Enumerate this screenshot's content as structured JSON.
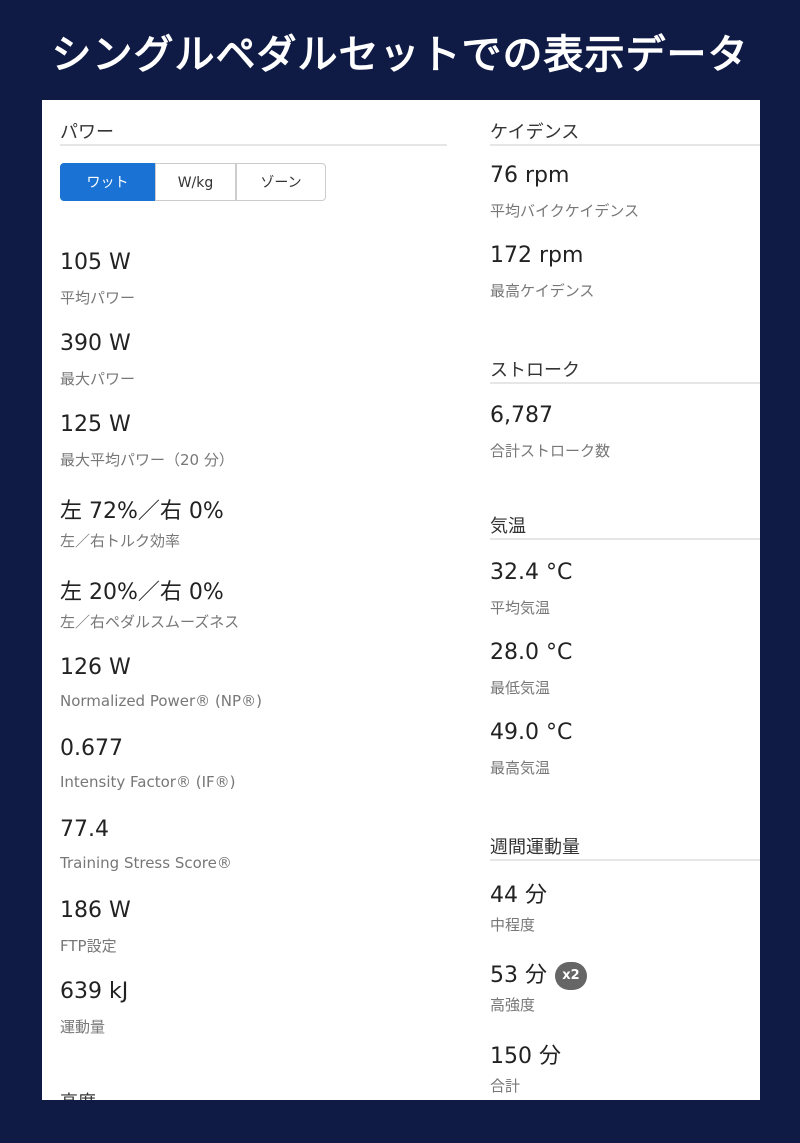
{
  "header": {
    "title": "シングルペダルセットでの表示データ"
  },
  "power": {
    "title": "パワー",
    "tabs": [
      "ワット",
      "W/kg",
      "ゾーン"
    ],
    "stats": [
      {
        "value": "105 W",
        "label": "平均パワー"
      },
      {
        "value": "390 W",
        "label": "最大パワー"
      },
      {
        "value": "125 W",
        "label": "最大平均パワー（20 分）"
      },
      {
        "value": "左 72%／右 0%",
        "label": "左／右トルク効率"
      },
      {
        "value": "左 20%／右 0%",
        "label": "左／右ペダルスムーズネス"
      },
      {
        "value": "126 W",
        "label": "Normalized Power® (NP®)"
      },
      {
        "value": "0.677",
        "label": "Intensity Factor® (IF®)"
      },
      {
        "value": "77.4",
        "label": "Training Stress Score®"
      },
      {
        "value": "186 W",
        "label": "FTP設定"
      },
      {
        "value": "639 kJ",
        "label": "運動量"
      }
    ]
  },
  "altitude": {
    "title": "高度"
  },
  "cadence": {
    "title": "ケイデンス",
    "stats": [
      {
        "value": "76 rpm",
        "label": "平均バイクケイデンス"
      },
      {
        "value": "172 rpm",
        "label": "最高ケイデンス"
      }
    ]
  },
  "stroke": {
    "title": "ストローク",
    "stats": [
      {
        "value": "6,787",
        "label": "合計ストローク数"
      }
    ]
  },
  "temperature": {
    "title": "気温",
    "stats": [
      {
        "value": "32.4 °C",
        "label": "平均気温"
      },
      {
        "value": "28.0 °C",
        "label": "最低気温"
      },
      {
        "value": "49.0 °C",
        "label": "最高気温"
      }
    ]
  },
  "weekly": {
    "title": "週間運動量",
    "stats": [
      {
        "value": "44 分",
        "label": "中程度"
      },
      {
        "value": "53 分",
        "label": "高強度",
        "badge": "x2"
      },
      {
        "value": "150 分",
        "label": "合計"
      }
    ]
  }
}
